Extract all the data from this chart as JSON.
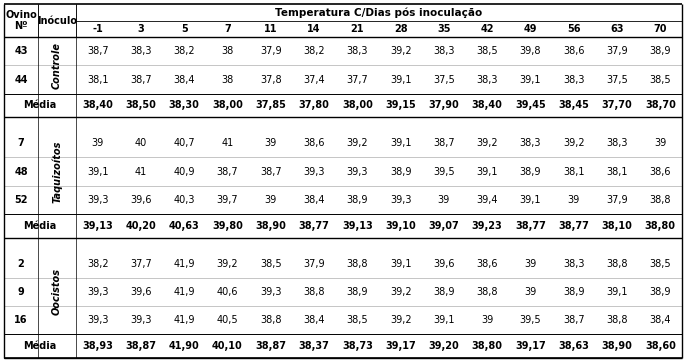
{
  "title": "Temperatura C/Dias pós inculação",
  "title_text": "Temperatura C/Dias pós inoculação",
  "col_headers": [
    "-1",
    "3",
    "5",
    "7",
    "11",
    "14",
    "21",
    "28",
    "35",
    "42",
    "49",
    "56",
    "63",
    "70"
  ],
  "groups": [
    {
      "inoculo": "Controle",
      "rows": [
        {
          "ovino": "43",
          "values": [
            "38,7",
            "38,3",
            "38,2",
            "38",
            "37,9",
            "38,2",
            "38,3",
            "39,2",
            "38,3",
            "38,5",
            "39,8",
            "38,6",
            "37,9",
            "38,9"
          ]
        },
        {
          "ovino": "44",
          "values": [
            "38,1",
            "38,7",
            "38,4",
            "38",
            "37,8",
            "37,4",
            "37,7",
            "39,1",
            "37,5",
            "38,3",
            "39,1",
            "38,3",
            "37,5",
            "38,5"
          ]
        }
      ],
      "media": [
        "38,40",
        "38,50",
        "38,30",
        "38,00",
        "37,85",
        "37,80",
        "38,00",
        "39,15",
        "37,90",
        "38,40",
        "39,45",
        "38,45",
        "37,70",
        "38,70"
      ]
    },
    {
      "inoculo": "Taquizoítos",
      "rows": [
        {
          "ovino": "7",
          "values": [
            "39",
            "40",
            "40,7",
            "41",
            "39",
            "38,6",
            "39,2",
            "39,1",
            "38,7",
            "39,2",
            "38,3",
            "39,2",
            "38,3",
            "39"
          ]
        },
        {
          "ovino": "48",
          "values": [
            "39,1",
            "41",
            "40,9",
            "38,7",
            "38,7",
            "39,3",
            "39,3",
            "38,9",
            "39,5",
            "39,1",
            "38,9",
            "38,1",
            "38,1",
            "38,6"
          ]
        },
        {
          "ovino": "52",
          "values": [
            "39,3",
            "39,6",
            "40,3",
            "39,7",
            "39",
            "38,4",
            "38,9",
            "39,3",
            "39",
            "39,4",
            "39,1",
            "39",
            "37,9",
            "38,8"
          ]
        }
      ],
      "media": [
        "39,13",
        "40,20",
        "40,63",
        "39,80",
        "38,90",
        "38,77",
        "39,13",
        "39,10",
        "39,07",
        "39,23",
        "38,77",
        "38,77",
        "38,10",
        "38,80"
      ]
    },
    {
      "inoculo": "Oocistos",
      "rows": [
        {
          "ovino": "2",
          "values": [
            "38,2",
            "37,7",
            "41,9",
            "39,2",
            "38,5",
            "37,9",
            "38,8",
            "39,1",
            "39,6",
            "38,6",
            "39",
            "38,3",
            "38,8",
            "38,5"
          ]
        },
        {
          "ovino": "9",
          "values": [
            "39,3",
            "39,6",
            "41,9",
            "40,6",
            "39,3",
            "38,8",
            "38,9",
            "39,2",
            "38,9",
            "38,8",
            "39",
            "38,9",
            "39,1",
            "38,9"
          ]
        },
        {
          "ovino": "16",
          "values": [
            "39,3",
            "39,3",
            "41,9",
            "40,5",
            "38,8",
            "38,4",
            "38,5",
            "39,2",
            "39,1",
            "39",
            "39,5",
            "38,7",
            "38,8",
            "38,4"
          ]
        }
      ],
      "media": [
        "38,93",
        "38,87",
        "41,90",
        "40,10",
        "38,87",
        "38,37",
        "38,73",
        "39,17",
        "39,20",
        "38,80",
        "39,17",
        "38,63",
        "38,90",
        "38,60"
      ]
    }
  ],
  "fs": 7.0,
  "hfs": 7.5
}
